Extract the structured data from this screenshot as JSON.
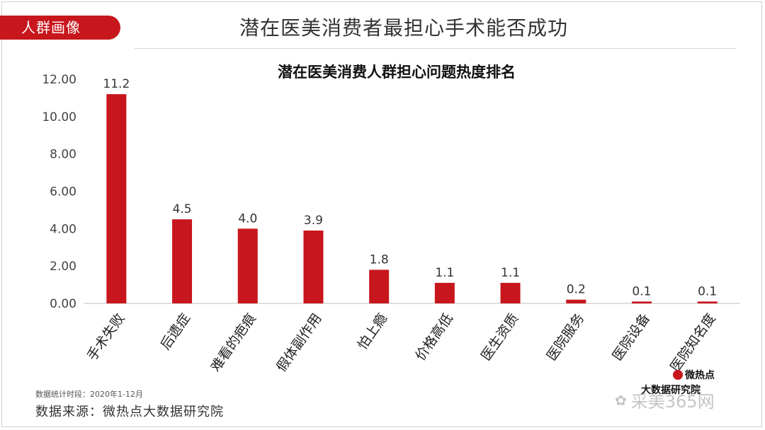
{
  "header": {
    "tag": "人群画像",
    "title": "潜在医美消费者最担心手术能否成功"
  },
  "chart_data": {
    "type": "bar",
    "title": "潜在医美消费人群担心问题热度排名",
    "categories": [
      "手术失败",
      "后遗症",
      "难看的疤痕",
      "假体副作用",
      "怕上瘾",
      "价格高低",
      "医生资质",
      "医院服务",
      "医院设备",
      "医院知名度"
    ],
    "values": [
      11.2,
      4.5,
      4.0,
      3.9,
      1.8,
      1.1,
      1.1,
      0.2,
      0.1,
      0.1
    ],
    "value_labels": [
      "11.2",
      "4.5",
      "4.0",
      "3.9",
      "1.8",
      "1.1",
      "1.1",
      "0.2",
      "0.1",
      "0.1"
    ],
    "yticks": [
      "0.00",
      "2.00",
      "4.00",
      "6.00",
      "8.00",
      "10.00",
      "12.00"
    ],
    "ylim": [
      0,
      12
    ],
    "bar_color": "#c8161d",
    "grid": false
  },
  "footer": {
    "period": "数据统计时段：2020年1-12月",
    "source": "数据来源：微热点大数据研究院"
  },
  "brand": {
    "logo_text": "微热点",
    "line2": "大数据研究院",
    "watermark": "采美365网"
  }
}
